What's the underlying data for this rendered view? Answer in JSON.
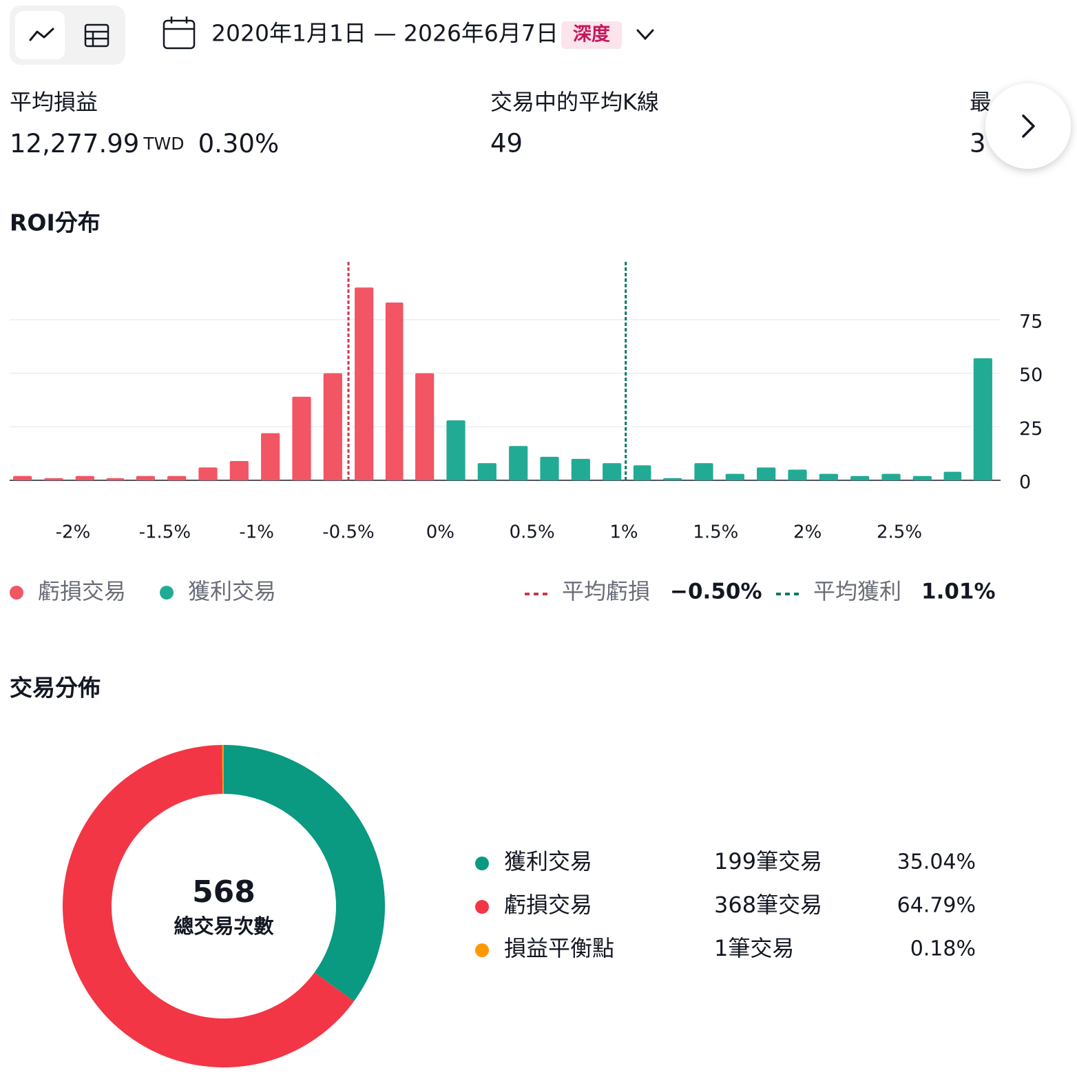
{
  "toolbar": {
    "date_range": "2020年1月1日 — 2026年6月7日",
    "badge": "深度"
  },
  "stats": [
    {
      "label": "平均損益",
      "value": "12,277.99",
      "unit": "TWD",
      "percent": "0.30%"
    },
    {
      "label": "交易中的平均K線",
      "value": "49"
    },
    {
      "label": "最",
      "value": "3"
    }
  ],
  "chart_data": [
    {
      "type": "histogram",
      "title": "ROI分布",
      "bins": [
        -2.36,
        -2.19,
        -2.02,
        -1.85,
        -1.69,
        -1.52,
        -1.35,
        -1.18,
        -1.01,
        -0.84,
        -0.67,
        -0.5,
        -0.33,
        -0.17,
        0,
        0.17,
        0.34,
        0.51,
        0.68,
        0.85,
        1.02,
        1.18,
        1.35,
        1.52,
        1.69,
        1.86,
        2.03,
        2.2,
        2.37,
        2.54,
        2.71,
        2.87,
        3.04
      ],
      "series": [
        {
          "name": "虧損交易",
          "color": "#f25563",
          "values": [
            2,
            1,
            2,
            1,
            2,
            2,
            6,
            9,
            22,
            39,
            50,
            90,
            83,
            50,
            null,
            null,
            null,
            null,
            null,
            null,
            null,
            null,
            null,
            null,
            null,
            null,
            null,
            null,
            null,
            null,
            null,
            null
          ]
        },
        {
          "name": "獲利交易",
          "color": "#22ab94",
          "values": [
            null,
            null,
            null,
            null,
            null,
            null,
            null,
            null,
            null,
            null,
            null,
            null,
            null,
            null,
            28,
            8,
            16,
            11,
            10,
            8,
            7,
            1,
            8,
            3,
            6,
            5,
            3,
            2,
            3,
            2,
            4,
            57
          ]
        }
      ],
      "reference_lines": [
        {
          "name": "平均虧損",
          "value": -0.5,
          "value_label": "−0.50%",
          "color": "#c93a48"
        },
        {
          "name": "平均獲利",
          "value": 1.01,
          "value_label": "1.01%",
          "color": "#0b7a62"
        }
      ],
      "xlim": [
        -2.36,
        3.04
      ],
      "xticks": [
        {
          "value": -2,
          "label": "-2%"
        },
        {
          "value": -1.5,
          "label": "-1.5%"
        },
        {
          "value": -1,
          "label": "-1%"
        },
        {
          "value": -0.5,
          "label": "-0.5%"
        },
        {
          "value": 0,
          "label": "0%"
        },
        {
          "value": 0.5,
          "label": "0.5%"
        },
        {
          "value": 1,
          "label": "1%"
        },
        {
          "value": 1.5,
          "label": "1.5%"
        },
        {
          "value": 2,
          "label": "2%"
        },
        {
          "value": 2.5,
          "label": "2.5%"
        }
      ],
      "ylim": [
        0,
        102
      ],
      "yticks": [
        0,
        25,
        50,
        75
      ],
      "grid": true
    },
    {
      "type": "donut",
      "title": "交易分佈",
      "total": 568,
      "total_label": "總交易次數",
      "categories": [
        "獲利交易",
        "虧損交易",
        "損益平衡點"
      ],
      "values": [
        199,
        368,
        1
      ],
      "value_labels": [
        "199筆交易",
        "368筆交易",
        "1筆交易"
      ],
      "percent_labels": [
        "35.04%",
        "64.79%",
        "0.18%"
      ],
      "colors": [
        "#0a9981",
        "#f23645",
        "#ff9800"
      ]
    }
  ]
}
